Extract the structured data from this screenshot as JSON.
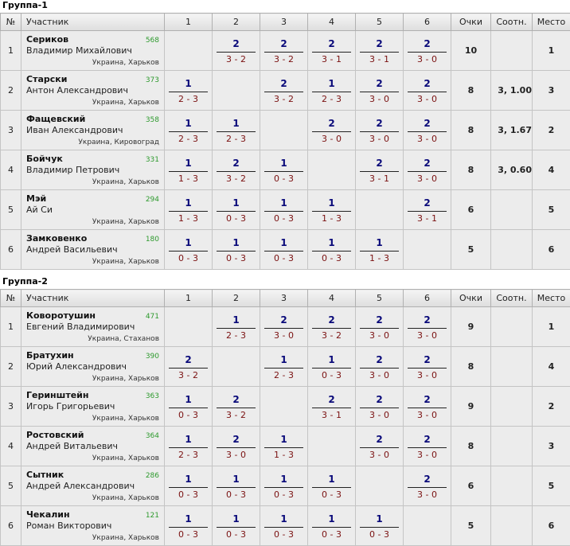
{
  "headers": {
    "num": "№",
    "player": "Участник",
    "cols": [
      "1",
      "2",
      "3",
      "4",
      "5",
      "6"
    ],
    "points": "Очки",
    "ratio": "Соотн.",
    "place": "Место"
  },
  "groups": [
    {
      "title": "Группа-1",
      "players": [
        {
          "num": "1",
          "last": "Сериков",
          "first": "Владимир Михайлович",
          "rating": "568",
          "location": "Украина, Харьков",
          "results": [
            null,
            {
              "p": "2",
              "s": "3 - 2"
            },
            {
              "p": "2",
              "s": "3 - 2"
            },
            {
              "p": "2",
              "s": "3 - 1"
            },
            {
              "p": "2",
              "s": "3 - 1"
            },
            {
              "p": "2",
              "s": "3 - 0"
            }
          ],
          "points": "10",
          "ratio": "",
          "place": "1"
        },
        {
          "num": "2",
          "last": "Старски",
          "first": "Антон Александрович",
          "rating": "373",
          "location": "Украина, Харьков",
          "results": [
            {
              "p": "1",
              "s": "2 - 3"
            },
            null,
            {
              "p": "2",
              "s": "3 - 2"
            },
            {
              "p": "1",
              "s": "2 - 3"
            },
            {
              "p": "2",
              "s": "3 - 0"
            },
            {
              "p": "2",
              "s": "3 - 0"
            }
          ],
          "points": "8",
          "ratio": "3, 1.00",
          "place": "3"
        },
        {
          "num": "3",
          "last": "Фащевский",
          "first": "Иван Александрович",
          "rating": "358",
          "location": "Украина, Кировоград",
          "results": [
            {
              "p": "1",
              "s": "2 - 3"
            },
            {
              "p": "1",
              "s": "2 - 3"
            },
            null,
            {
              "p": "2",
              "s": "3 - 0"
            },
            {
              "p": "2",
              "s": "3 - 0"
            },
            {
              "p": "2",
              "s": "3 - 0"
            }
          ],
          "points": "8",
          "ratio": "3, 1.67",
          "place": "2"
        },
        {
          "num": "4",
          "last": "Бойчук",
          "first": "Владимир Петрович",
          "rating": "331",
          "location": "Украина, Харьков",
          "results": [
            {
              "p": "1",
              "s": "1 - 3"
            },
            {
              "p": "2",
              "s": "3 - 2"
            },
            {
              "p": "1",
              "s": "0 - 3"
            },
            null,
            {
              "p": "2",
              "s": "3 - 1"
            },
            {
              "p": "2",
              "s": "3 - 0"
            }
          ],
          "points": "8",
          "ratio": "3, 0.60",
          "place": "4"
        },
        {
          "num": "5",
          "last": "Мэй",
          "first": "Ай Си",
          "rating": "294",
          "location": "Украина, Харьков",
          "results": [
            {
              "p": "1",
              "s": "1 - 3"
            },
            {
              "p": "1",
              "s": "0 - 3"
            },
            {
              "p": "1",
              "s": "0 - 3"
            },
            {
              "p": "1",
              "s": "1 - 3"
            },
            null,
            {
              "p": "2",
              "s": "3 - 1"
            }
          ],
          "points": "6",
          "ratio": "",
          "place": "5"
        },
        {
          "num": "6",
          "last": "Замковенко",
          "first": "Андрей Васильевич",
          "rating": "180",
          "location": "Украина, Харьков",
          "results": [
            {
              "p": "1",
              "s": "0 - 3"
            },
            {
              "p": "1",
              "s": "0 - 3"
            },
            {
              "p": "1",
              "s": "0 - 3"
            },
            {
              "p": "1",
              "s": "0 - 3"
            },
            {
              "p": "1",
              "s": "1 - 3"
            },
            null
          ],
          "points": "5",
          "ratio": "",
          "place": "6"
        }
      ]
    },
    {
      "title": "Группа-2",
      "players": [
        {
          "num": "1",
          "last": "Коворотушин",
          "first": "Евгений Владимирович",
          "rating": "471",
          "location": "Украина, Стаханов",
          "results": [
            null,
            {
              "p": "1",
              "s": "2 - 3"
            },
            {
              "p": "2",
              "s": "3 - 0"
            },
            {
              "p": "2",
              "s": "3 - 2"
            },
            {
              "p": "2",
              "s": "3 - 0"
            },
            {
              "p": "2",
              "s": "3 - 0"
            }
          ],
          "points": "9",
          "ratio": "",
          "place": "1"
        },
        {
          "num": "2",
          "last": "Братухин",
          "first": "Юрий Александрович",
          "rating": "390",
          "location": "Украина, Харьков",
          "results": [
            {
              "p": "2",
              "s": "3 - 2"
            },
            null,
            {
              "p": "1",
              "s": "2 - 3"
            },
            {
              "p": "1",
              "s": "0 - 3"
            },
            {
              "p": "2",
              "s": "3 - 0"
            },
            {
              "p": "2",
              "s": "3 - 0"
            }
          ],
          "points": "8",
          "ratio": "",
          "place": "4"
        },
        {
          "num": "3",
          "last": "Геринштейн",
          "first": "Игорь Григорьевич",
          "rating": "363",
          "location": "Украина, Харьков",
          "results": [
            {
              "p": "1",
              "s": "0 - 3"
            },
            {
              "p": "2",
              "s": "3 - 2"
            },
            null,
            {
              "p": "2",
              "s": "3 - 1"
            },
            {
              "p": "2",
              "s": "3 - 0"
            },
            {
              "p": "2",
              "s": "3 - 0"
            }
          ],
          "points": "9",
          "ratio": "",
          "place": "2"
        },
        {
          "num": "4",
          "last": "Ростовский",
          "first": "Андрей Витальевич",
          "rating": "364",
          "location": "Украина, Харьков",
          "results": [
            {
              "p": "1",
              "s": "2 - 3"
            },
            {
              "p": "2",
              "s": "3 - 0"
            },
            {
              "p": "1",
              "s": "1 - 3"
            },
            null,
            {
              "p": "2",
              "s": "3 - 0"
            },
            {
              "p": "2",
              "s": "3 - 0"
            }
          ],
          "points": "8",
          "ratio": "",
          "place": "3"
        },
        {
          "num": "5",
          "last": "Сытник",
          "first": "Андрей Александрович",
          "rating": "286",
          "location": "Украина, Харьков",
          "results": [
            {
              "p": "1",
              "s": "0 - 3"
            },
            {
              "p": "1",
              "s": "0 - 3"
            },
            {
              "p": "1",
              "s": "0 - 3"
            },
            {
              "p": "1",
              "s": "0 - 3"
            },
            null,
            {
              "p": "2",
              "s": "3 - 0"
            }
          ],
          "points": "6",
          "ratio": "",
          "place": "5"
        },
        {
          "num": "6",
          "last": "Чекалин",
          "first": "Роман Викторович",
          "rating": "121",
          "location": "Украина, Харьков",
          "results": [
            {
              "p": "1",
              "s": "0 - 3"
            },
            {
              "p": "1",
              "s": "0 - 3"
            },
            {
              "p": "1",
              "s": "0 - 3"
            },
            {
              "p": "1",
              "s": "0 - 3"
            },
            {
              "p": "1",
              "s": "0 - 3"
            },
            null
          ],
          "points": "5",
          "ratio": "",
          "place": "6"
        }
      ]
    }
  ]
}
